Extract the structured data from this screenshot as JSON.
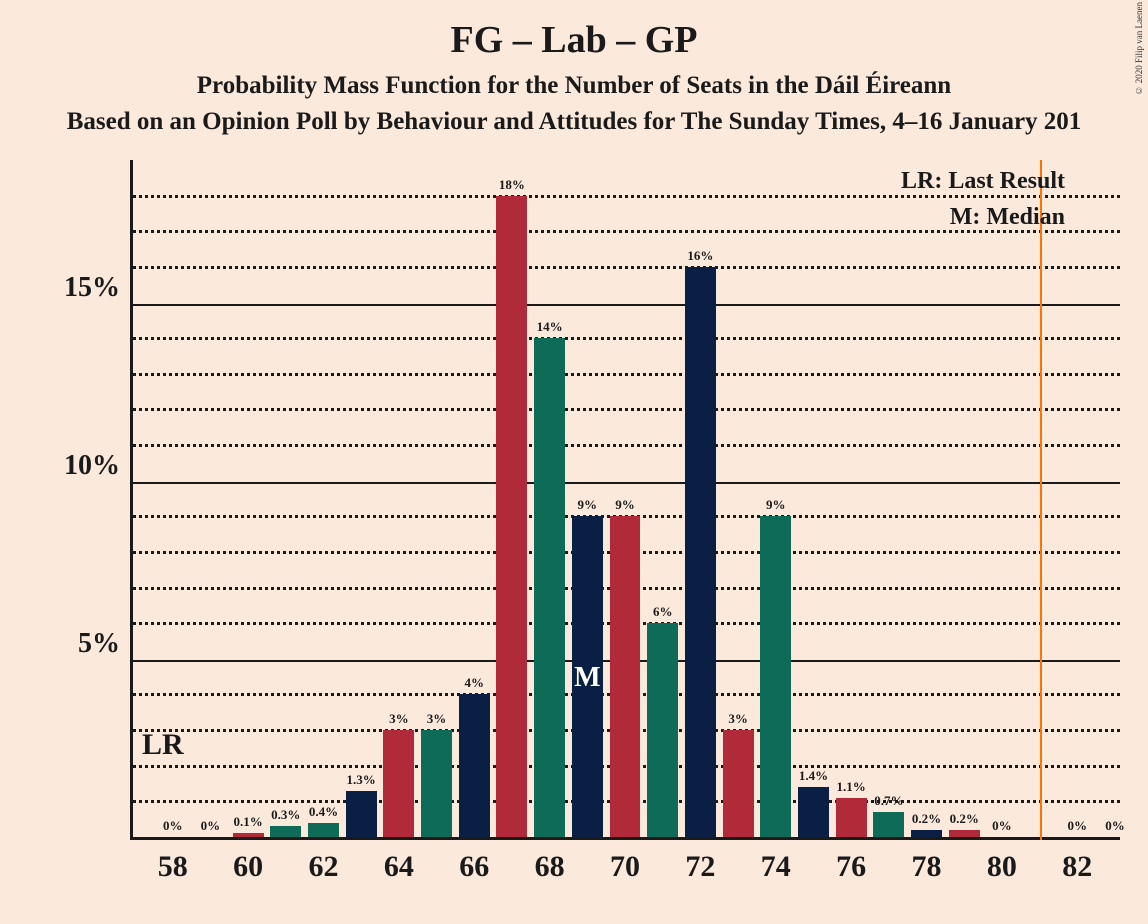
{
  "titles": {
    "main": "FG – Lab – GP",
    "sub1": "Probability Mass Function for the Number of Seats in the Dáil Éireann",
    "sub2": "Based on an Opinion Poll by Behaviour and Attitudes for The Sunday Times, 4–16 January 201"
  },
  "copyright": "© 2020 Filip van Laenen",
  "legend": {
    "lr": "LR: Last Result",
    "m": "M: Median"
  },
  "markers": {
    "lr": "LR",
    "m": "M"
  },
  "chart": {
    "type": "bar",
    "background_color": "#fbe9dc",
    "axis_color": "#1a1a1a",
    "series_colors": [
      "#0a1f44",
      "#b02a3a",
      "#0d6b58"
    ],
    "lr_line_color": "#ff7300",
    "lr_line_x": 81,
    "x_min": 57,
    "x_max": 83,
    "y_max_pct": 19,
    "y_major_ticks": [
      5,
      10,
      15
    ],
    "y_minor_ticks": [
      1,
      2,
      3,
      4,
      6,
      7,
      8,
      9,
      11,
      12,
      13,
      14,
      16,
      17,
      18
    ],
    "x_ticks": [
      58,
      60,
      62,
      64,
      66,
      68,
      70,
      72,
      74,
      76,
      78,
      80,
      82
    ],
    "groups": [
      {
        "x": 58,
        "bars": [
          {
            "s": 0,
            "v": 0,
            "l": "0%"
          }
        ]
      },
      {
        "x": 59,
        "bars": [
          {
            "s": 1,
            "v": 0,
            "l": "0%"
          }
        ]
      },
      {
        "x": 60,
        "bars": [
          {
            "s": 1,
            "v": 0.1,
            "l": "0.1%"
          }
        ]
      },
      {
        "x": 61,
        "bars": [
          {
            "s": 2,
            "v": 0.3,
            "l": "0.3%"
          }
        ]
      },
      {
        "x": 62,
        "bars": [
          {
            "s": 2,
            "v": 0.4,
            "l": "0.4%"
          }
        ]
      },
      {
        "x": 63,
        "bars": [
          {
            "s": 0,
            "v": 1.3,
            "l": "1.3%"
          }
        ]
      },
      {
        "x": 64,
        "bars": [
          {
            "s": 1,
            "v": 3,
            "l": "3%"
          }
        ]
      },
      {
        "x": 65,
        "bars": [
          {
            "s": 2,
            "v": 3,
            "l": "3%"
          }
        ]
      },
      {
        "x": 66,
        "bars": [
          {
            "s": 0,
            "v": 4,
            "l": "4%"
          }
        ]
      },
      {
        "x": 67,
        "bars": [
          {
            "s": 1,
            "v": 18,
            "l": "18%"
          }
        ]
      },
      {
        "x": 68,
        "bars": [
          {
            "s": 2,
            "v": 14,
            "l": "14%"
          }
        ]
      },
      {
        "x": 69,
        "bars": [
          {
            "s": 0,
            "v": 9,
            "l": "9%",
            "median": true
          }
        ]
      },
      {
        "x": 70,
        "bars": [
          {
            "s": 1,
            "v": 9,
            "l": "9%"
          }
        ]
      },
      {
        "x": 71,
        "bars": [
          {
            "s": 2,
            "v": 6,
            "l": "6%"
          }
        ]
      },
      {
        "x": 72,
        "bars": [
          {
            "s": 0,
            "v": 16,
            "l": "16%"
          }
        ]
      },
      {
        "x": 73,
        "bars": [
          {
            "s": 1,
            "v": 3,
            "l": "3%"
          }
        ]
      },
      {
        "x": 74,
        "bars": [
          {
            "s": 2,
            "v": 9,
            "l": "9%"
          }
        ]
      },
      {
        "x": 75,
        "bars": [
          {
            "s": 0,
            "v": 1.4,
            "l": "1.4%"
          }
        ]
      },
      {
        "x": 76,
        "bars": [
          {
            "s": 1,
            "v": 1.1,
            "l": "1.1%"
          }
        ]
      },
      {
        "x": 77,
        "bars": [
          {
            "s": 2,
            "v": 0.7,
            "l": "0.7%"
          }
        ]
      },
      {
        "x": 78,
        "bars": [
          {
            "s": 0,
            "v": 0.2,
            "l": "0.2%"
          }
        ]
      },
      {
        "x": 79,
        "bars": [
          {
            "s": 1,
            "v": 0.2,
            "l": "0.2%"
          }
        ]
      },
      {
        "x": 80,
        "bars": [
          {
            "s": 2,
            "v": 0,
            "l": "0%"
          }
        ]
      },
      {
        "x": 82,
        "bars": [
          {
            "s": 1,
            "v": 0,
            "l": "0%"
          }
        ]
      },
      {
        "x": 83,
        "bars": [
          {
            "s": 2,
            "v": 0,
            "l": "0%"
          }
        ]
      }
    ]
  },
  "y_tick_labels": {
    "5": "5%",
    "10": "10%",
    "15": "15%"
  }
}
